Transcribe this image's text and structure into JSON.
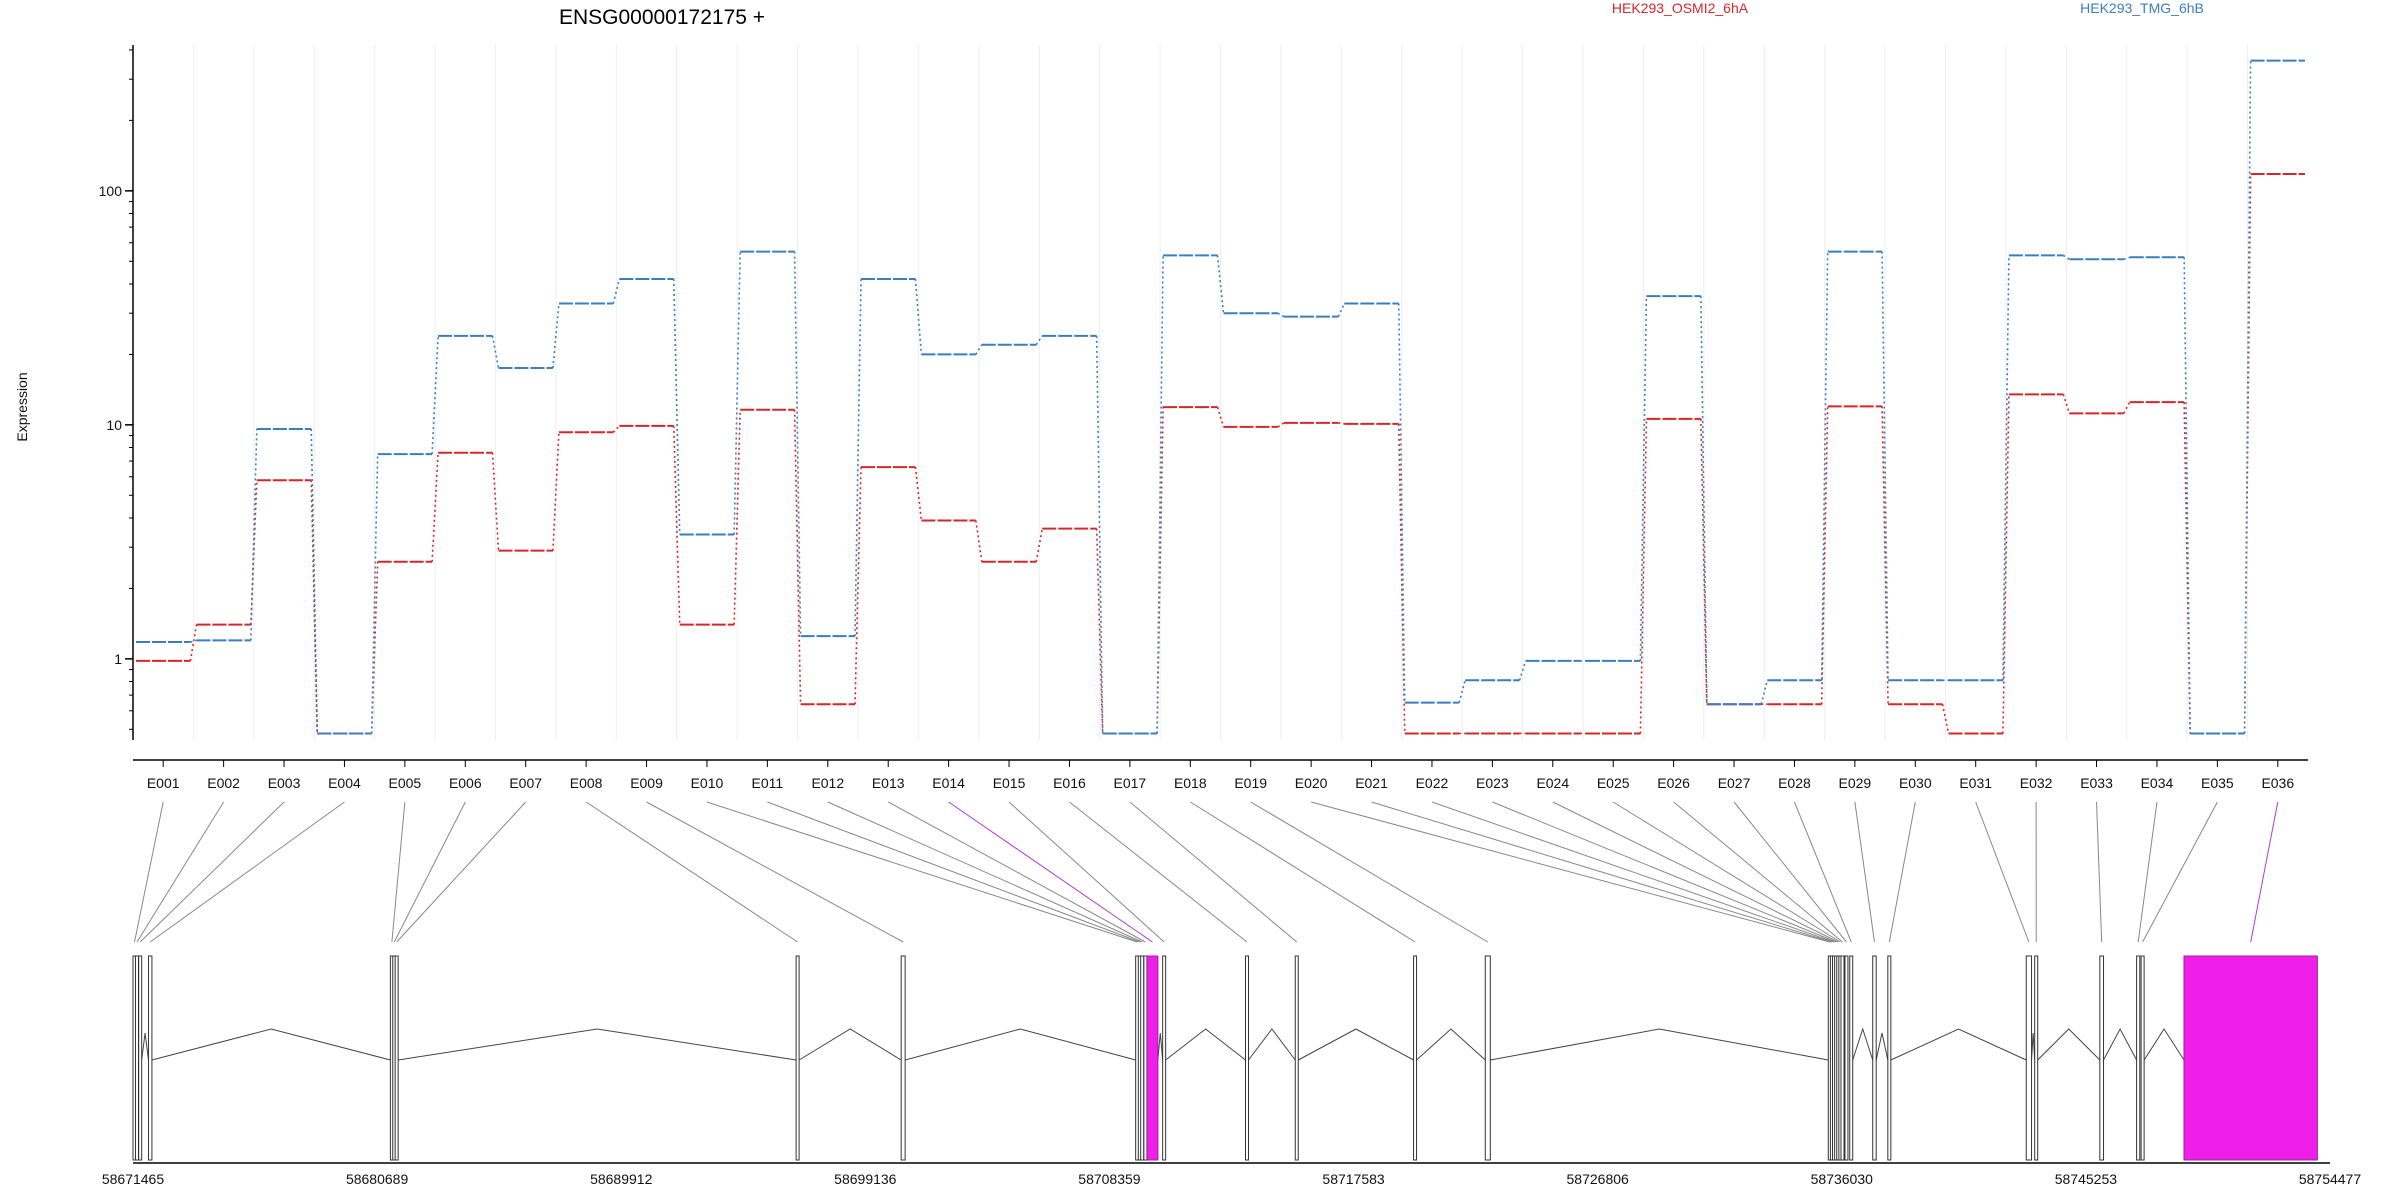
{
  "chart_data": {
    "type": "line",
    "title": "ENSG00000172175 +",
    "ylabel": "Expression",
    "xlabel": "",
    "y_scale": "log",
    "ylim": [
      0.45,
      420
    ],
    "y_ticks": [
      {
        "value": 1,
        "label": "1"
      },
      {
        "value": 10,
        "label": "10"
      },
      {
        "value": 100,
        "label": "100"
      }
    ],
    "grid": "vertical, light",
    "legend_position": "top-right",
    "categories": [
      "E001",
      "E002",
      "E003",
      "E004",
      "E005",
      "E006",
      "E007",
      "E008",
      "E009",
      "E010",
      "E011",
      "E012",
      "E013",
      "E014",
      "E015",
      "E016",
      "E017",
      "E018",
      "E019",
      "E020",
      "E021",
      "E022",
      "E023",
      "E024",
      "E025",
      "E026",
      "E027",
      "E028",
      "E029",
      "E030",
      "E031",
      "E032",
      "E033",
      "E034",
      "E035",
      "E036"
    ],
    "series": [
      {
        "name": "HEK293_OSMI2_6hA",
        "color": "#d62728",
        "values": [
          0.98,
          1.4,
          5.8,
          0.48,
          2.6,
          7.6,
          2.9,
          9.3,
          9.9,
          1.4,
          11.6,
          0.64,
          6.6,
          3.9,
          2.6,
          3.6,
          0.48,
          11.9,
          9.8,
          10.2,
          10.1,
          0.48,
          0.48,
          0.48,
          0.48,
          10.6,
          0.64,
          0.64,
          12.0,
          0.64,
          0.48,
          13.5,
          11.2,
          12.5,
          0.48,
          118
        ]
      },
      {
        "name": "HEK293_TMG_6hB",
        "color": "#3a7ebf",
        "values": [
          1.18,
          1.2,
          9.6,
          0.48,
          7.5,
          24.0,
          17.5,
          33.0,
          42.0,
          3.4,
          55.0,
          1.25,
          42.0,
          20.0,
          22.0,
          24.0,
          0.48,
          53.0,
          30.0,
          29.0,
          33.0,
          0.65,
          0.81,
          0.98,
          0.98,
          35.5,
          0.64,
          0.81,
          55.0,
          0.81,
          0.81,
          53.0,
          51.0,
          52.0,
          0.48,
          360
        ]
      }
    ],
    "gene_model": {
      "genomic_ticks": [
        "58671465",
        "58680689",
        "58689912",
        "58699136",
        "58708359",
        "58717583",
        "58726806",
        "58736030",
        "58745253",
        "58754477"
      ],
      "genomic_range": [
        58671465,
        58754477
      ],
      "highlight_color": "#ee1fe8",
      "exons": [
        {
          "id": "E001",
          "start": 58671465,
          "end": 58671530
        },
        {
          "id": "E002",
          "start": 58671560,
          "end": 58671640
        },
        {
          "id": "E003",
          "start": 58671680,
          "end": 58671750
        },
        {
          "id": "E004",
          "start": 58672050,
          "end": 58672180
        },
        {
          "id": "E005",
          "start": 58681190,
          "end": 58681260
        },
        {
          "id": "E006",
          "start": 58681280,
          "end": 58681350
        },
        {
          "id": "E007",
          "start": 58681370,
          "end": 58681430
        },
        {
          "id": "E008",
          "start": 58696520,
          "end": 58696620
        },
        {
          "id": "E009",
          "start": 58700490,
          "end": 58700640
        },
        {
          "id": "E010",
          "start": 58709350,
          "end": 58709430
        },
        {
          "id": "E011",
          "start": 58709450,
          "end": 58709520
        },
        {
          "id": "E012",
          "start": 58709540,
          "end": 58709620
        },
        {
          "id": "E013",
          "start": 58709660,
          "end": 58709730
        },
        {
          "id": "E014",
          "start": 58709780,
          "end": 58710190,
          "highlight": true
        },
        {
          "id": "E015",
          "start": 58710370,
          "end": 58710430
        },
        {
          "id": "E016",
          "start": 58713500,
          "end": 58713560
        },
        {
          "id": "E017",
          "start": 58715380,
          "end": 58715440
        },
        {
          "id": "E018",
          "start": 58719850,
          "end": 58719910
        },
        {
          "id": "E019",
          "start": 58722560,
          "end": 58722750
        },
        {
          "id": "E020",
          "start": 58735520,
          "end": 58735580
        },
        {
          "id": "E021",
          "start": 58735600,
          "end": 58735660
        },
        {
          "id": "E022",
          "start": 58735680,
          "end": 58735740
        },
        {
          "id": "E023",
          "start": 58735760,
          "end": 58735820
        },
        {
          "id": "E024",
          "start": 58735840,
          "end": 58735900
        },
        {
          "id": "E025",
          "start": 58735920,
          "end": 58735980
        },
        {
          "id": "E026",
          "start": 58736000,
          "end": 58736060
        },
        {
          "id": "E027",
          "start": 58736150,
          "end": 58736260
        },
        {
          "id": "E028",
          "start": 58736330,
          "end": 58736390
        },
        {
          "id": "E029",
          "start": 58737200,
          "end": 58737330
        },
        {
          "id": "E030",
          "start": 58737770,
          "end": 58737870
        },
        {
          "id": "E031",
          "start": 58743000,
          "end": 58743200
        },
        {
          "id": "E032",
          "start": 58743320,
          "end": 58743430
        },
        {
          "id": "E033",
          "start": 58745780,
          "end": 58745920
        },
        {
          "id": "E034",
          "start": 58747170,
          "end": 58747290
        },
        {
          "id": "E035",
          "start": 58747340,
          "end": 58747400
        },
        {
          "id": "E036",
          "start": 58748960,
          "end": 58754000,
          "highlight": true
        }
      ]
    }
  }
}
